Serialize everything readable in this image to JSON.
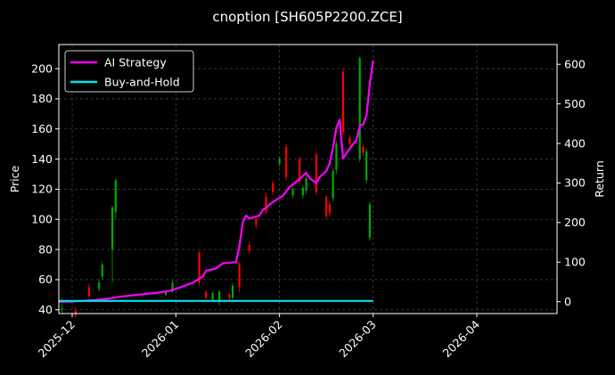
{
  "chart_data": {
    "type": "line",
    "title": "cnoption [SH605P2200.ZCE]",
    "xlabel": "",
    "ylabel_left": "Price",
    "ylabel_right": "Return",
    "x_range": [
      "2025-11-27",
      "2026-04-25"
    ],
    "ylim_left": [
      37.5,
      216
    ],
    "ylim_right": [
      -30,
      650
    ],
    "x_ticks": [
      "2025-12-01",
      "2026-01-01",
      "2026-02-01",
      "2026-03-01",
      "2026-04-01"
    ],
    "x_tick_labels": [
      "2025-12",
      "2026-01",
      "2026-02",
      "2026-03",
      "2026-04"
    ],
    "y_ticks_left": [
      40,
      60,
      80,
      100,
      120,
      140,
      160,
      180,
      200
    ],
    "y_ticks_right": [
      0,
      100,
      200,
      300,
      400,
      500,
      600
    ],
    "grid": true,
    "legend_position": "top-left",
    "colors": {
      "background": "#000000",
      "ai_strategy": "#ff00ff",
      "buy_and_hold": "#00e5ee",
      "candle_up": "#00aa00",
      "candle_down": "#ff0000",
      "grid": "#555555"
    },
    "series": [
      {
        "name": "AI Strategy",
        "axis": "right",
        "color": "#ff00ff",
        "points": [
          [
            "2025-11-27",
            0
          ],
          [
            "2025-12-01",
            0
          ],
          [
            "2025-12-02",
            1
          ],
          [
            "2025-12-04",
            2
          ],
          [
            "2025-12-08",
            4
          ],
          [
            "2025-12-12",
            8
          ],
          [
            "2025-12-15",
            12
          ],
          [
            "2025-12-20",
            17
          ],
          [
            "2025-12-26",
            22
          ],
          [
            "2025-12-30",
            27
          ],
          [
            "2026-01-02",
            35
          ],
          [
            "2026-01-06",
            48
          ],
          [
            "2026-01-09",
            63
          ],
          [
            "2026-01-10",
            78
          ],
          [
            "2026-01-13",
            84
          ],
          [
            "2026-01-15",
            97
          ],
          [
            "2026-01-19",
            100
          ],
          [
            "2026-01-20",
            140
          ],
          [
            "2026-01-21",
            200
          ],
          [
            "2026-01-22",
            218
          ],
          [
            "2026-01-23",
            210
          ],
          [
            "2026-01-26",
            218
          ],
          [
            "2026-01-27",
            232
          ],
          [
            "2026-01-28",
            238
          ],
          [
            "2026-01-30",
            252
          ],
          [
            "2026-02-02",
            268
          ],
          [
            "2026-02-04",
            290
          ],
          [
            "2026-02-06",
            303
          ],
          [
            "2026-02-07",
            310
          ],
          [
            "2026-02-09",
            326
          ],
          [
            "2026-02-10",
            312
          ],
          [
            "2026-02-12",
            300
          ],
          [
            "2026-02-13",
            315
          ],
          [
            "2026-02-15",
            330
          ],
          [
            "2026-02-16",
            350
          ],
          [
            "2026-02-17",
            388
          ],
          [
            "2026-02-18",
            440
          ],
          [
            "2026-02-19",
            460
          ],
          [
            "2026-02-20",
            362
          ],
          [
            "2026-02-21",
            375
          ],
          [
            "2026-02-23",
            398
          ],
          [
            "2026-02-24",
            408
          ],
          [
            "2026-02-25",
            445
          ],
          [
            "2026-02-26",
            448
          ],
          [
            "2026-02-27",
            470
          ],
          [
            "2026-02-28",
            550
          ],
          [
            "2026-03-01",
            610
          ]
        ]
      },
      {
        "name": "Buy-and-Hold",
        "axis": "right",
        "color": "#00e5ee",
        "points": [
          [
            "2025-11-27",
            2
          ],
          [
            "2026-03-01",
            2
          ]
        ]
      }
    ],
    "candles": [
      {
        "date": "2025-11-28",
        "o": 40,
        "c": 41,
        "h": 48,
        "l": 38
      },
      {
        "date": "2025-12-02",
        "o": 39,
        "c": 36,
        "h": 42,
        "l": 35
      },
      {
        "date": "2025-12-06",
        "o": 55,
        "c": 49,
        "h": 57,
        "l": 48
      },
      {
        "date": "2025-12-09",
        "o": 54,
        "c": 58,
        "h": 60,
        "l": 52
      },
      {
        "date": "2025-12-10",
        "o": 62,
        "c": 70,
        "h": 72,
        "l": 60
      },
      {
        "date": "2025-12-13",
        "o": 80,
        "c": 108,
        "h": 109,
        "l": 58
      },
      {
        "date": "2025-12-14",
        "o": 105,
        "c": 126,
        "h": 127,
        "l": 100
      },
      {
        "date": "2025-12-29",
        "o": 50,
        "c": 52,
        "h": 53,
        "l": 49
      },
      {
        "date": "2025-12-31",
        "o": 52,
        "c": 58,
        "h": 60,
        "l": 51
      },
      {
        "date": "2026-01-08",
        "o": 78,
        "c": 58,
        "h": 79,
        "l": 56
      },
      {
        "date": "2026-01-10",
        "o": 52,
        "c": 48,
        "h": 53,
        "l": 47
      },
      {
        "date": "2026-01-12",
        "o": 47,
        "c": 51,
        "h": 52,
        "l": 46
      },
      {
        "date": "2026-01-14",
        "o": 45,
        "c": 52,
        "h": 53,
        "l": 43
      },
      {
        "date": "2026-01-17",
        "o": 50,
        "c": 48,
        "h": 51,
        "l": 46
      },
      {
        "date": "2026-01-18",
        "o": 48,
        "c": 56,
        "h": 58,
        "l": 47
      },
      {
        "date": "2026-01-20",
        "o": 70,
        "c": 55,
        "h": 72,
        "l": 52
      },
      {
        "date": "2026-01-23",
        "o": 83,
        "c": 79,
        "h": 85,
        "l": 77
      },
      {
        "date": "2026-01-25",
        "o": 100,
        "c": 96,
        "h": 102,
        "l": 94
      },
      {
        "date": "2026-01-28",
        "o": 115,
        "c": 105,
        "h": 118,
        "l": 103
      },
      {
        "date": "2026-01-30",
        "o": 124,
        "c": 118,
        "h": 126,
        "l": 116
      },
      {
        "date": "2026-02-01",
        "o": 137,
        "c": 140,
        "h": 142,
        "l": 135
      },
      {
        "date": "2026-02-03",
        "o": 148,
        "c": 128,
        "h": 150,
        "l": 126
      },
      {
        "date": "2026-02-05",
        "o": 116,
        "c": 120,
        "h": 122,
        "l": 114
      },
      {
        "date": "2026-02-07",
        "o": 140,
        "c": 125,
        "h": 142,
        "l": 123
      },
      {
        "date": "2026-02-08",
        "o": 116,
        "c": 121,
        "h": 123,
        "l": 114
      },
      {
        "date": "2026-02-09",
        "o": 119,
        "c": 127,
        "h": 129,
        "l": 117
      },
      {
        "date": "2026-02-12",
        "o": 143,
        "c": 118,
        "h": 145,
        "l": 116
      },
      {
        "date": "2026-02-15",
        "o": 115,
        "c": 102,
        "h": 116,
        "l": 100
      },
      {
        "date": "2026-02-16",
        "o": 110,
        "c": 104,
        "h": 112,
        "l": 102
      },
      {
        "date": "2026-02-17",
        "o": 114,
        "c": 132,
        "h": 134,
        "l": 112
      },
      {
        "date": "2026-02-18",
        "o": 133,
        "c": 150,
        "h": 152,
        "l": 130
      },
      {
        "date": "2026-02-20",
        "o": 198,
        "c": 158,
        "h": 200,
        "l": 156
      },
      {
        "date": "2026-02-22",
        "o": 154,
        "c": 150,
        "h": 156,
        "l": 148
      },
      {
        "date": "2026-02-25",
        "o": 140,
        "c": 207,
        "h": 208,
        "l": 138
      },
      {
        "date": "2026-02-26",
        "o": 148,
        "c": 144,
        "h": 150,
        "l": 142
      },
      {
        "date": "2026-02-27",
        "o": 126,
        "c": 145,
        "h": 147,
        "l": 124
      },
      {
        "date": "2026-02-28",
        "o": 88,
        "c": 110,
        "h": 112,
        "l": 86
      }
    ]
  }
}
